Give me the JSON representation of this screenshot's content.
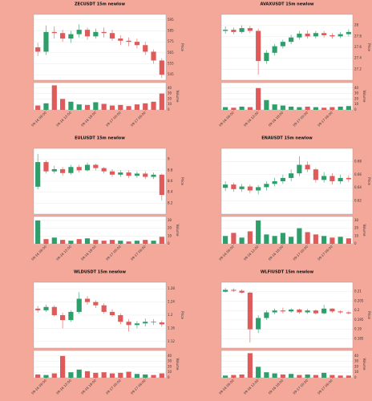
{
  "chart_data": [
    {
      "type": "candlestick",
      "title": "ZECUSDT 15m newlow",
      "ylabel": "Price",
      "volume_label": "Volume",
      "categories": [
        null,
        "09-16 06:00",
        null,
        null,
        "09-16 12:00",
        null,
        null,
        "09-16 18:00",
        null,
        null,
        "09-17 00:00",
        null,
        null,
        "09-17 06:00",
        null,
        null
      ],
      "open": [
        570,
        566,
        584,
        583,
        578,
        582,
        586,
        580,
        584,
        583,
        578,
        576,
        575,
        572,
        566,
        558
      ],
      "close": [
        566,
        584,
        583,
        578,
        582,
        586,
        580,
        584,
        583,
        578,
        576,
        575,
        572,
        566,
        558,
        545
      ],
      "high": [
        574,
        590,
        589,
        586,
        585,
        591,
        588,
        587,
        588,
        586,
        581,
        579,
        578,
        575,
        568,
        560
      ],
      "low": [
        562,
        563,
        578,
        575,
        574,
        579,
        577,
        578,
        579,
        576,
        572,
        571,
        569,
        563,
        555,
        542
      ],
      "volume": [
        8,
        12,
        45,
        20,
        15,
        10,
        9,
        14,
        11,
        8,
        9,
        7,
        10,
        12,
        15,
        30
      ],
      "ylim": [
        540,
        600
      ],
      "yticks": [
        545,
        555,
        565,
        575,
        585,
        595
      ],
      "vlim": [
        0,
        50
      ],
      "vticks": [
        0,
        10,
        20,
        30,
        40
      ],
      "up_color": "#2e9e6b",
      "down_color": "#e05a5a",
      "grid": true
    },
    {
      "type": "candlestick",
      "title": "AVAXUSDT 15m newlow",
      "ylabel": "Price",
      "volume_label": "Volume",
      "categories": [
        null,
        "09-16 06:00",
        null,
        null,
        "09-16 12:00",
        null,
        null,
        "09-16 18:00",
        null,
        null,
        "09-17 00:00",
        null,
        null,
        "09-17 06:00",
        null,
        null
      ],
      "open": [
        27.9,
        27.92,
        27.88,
        27.95,
        27.9,
        27.35,
        27.5,
        27.62,
        27.7,
        27.78,
        27.85,
        27.8,
        27.86,
        27.82,
        27.8,
        27.84
      ],
      "close": [
        27.92,
        27.88,
        27.95,
        27.9,
        27.35,
        27.5,
        27.62,
        27.7,
        27.78,
        27.85,
        27.8,
        27.86,
        27.82,
        27.8,
        27.84,
        27.88
      ],
      "high": [
        27.98,
        27.96,
        28.0,
        27.99,
        27.94,
        27.55,
        27.66,
        27.74,
        27.83,
        27.9,
        27.91,
        27.9,
        27.9,
        27.86,
        27.88,
        27.93
      ],
      "low": [
        27.85,
        27.84,
        27.85,
        27.86,
        27.1,
        27.3,
        27.45,
        27.58,
        27.66,
        27.74,
        27.76,
        27.76,
        27.78,
        27.76,
        27.77,
        27.8
      ],
      "volume": [
        5,
        4,
        6,
        5,
        40,
        18,
        10,
        8,
        6,
        5,
        6,
        5,
        4,
        5,
        6,
        7
      ],
      "ylim": [
        27.0,
        28.2
      ],
      "yticks": [
        27.2,
        27.4,
        27.6,
        27.8,
        28
      ],
      "vlim": [
        0,
        50
      ],
      "vticks": [
        0,
        10,
        20,
        30,
        40
      ],
      "up_color": "#2e9e6b",
      "down_color": "#e05a5a",
      "grid": true
    },
    {
      "type": "candlestick",
      "title": "EULUSDT 15m newlow",
      "ylabel": "Price",
      "volume_label": "Volume",
      "categories": [
        null,
        "09-16 06:00",
        null,
        null,
        "09-16 12:00",
        null,
        null,
        "09-16 18:00",
        null,
        null,
        "09-17 00:00",
        null,
        null,
        "09-17 06:00",
        null,
        null
      ],
      "open": [
        8.5,
        8.95,
        8.78,
        8.82,
        8.75,
        8.86,
        8.8,
        8.9,
        8.84,
        8.78,
        8.72,
        8.76,
        8.7,
        8.74,
        8.68,
        8.72
      ],
      "close": [
        8.95,
        8.78,
        8.82,
        8.75,
        8.86,
        8.8,
        8.9,
        8.84,
        8.78,
        8.72,
        8.76,
        8.7,
        8.74,
        8.68,
        8.72,
        8.35
      ],
      "high": [
        9.1,
        8.98,
        8.88,
        8.86,
        8.9,
        8.9,
        8.94,
        8.92,
        8.86,
        8.82,
        8.8,
        8.8,
        8.78,
        8.78,
        8.76,
        8.74
      ],
      "low": [
        8.45,
        8.74,
        8.74,
        8.7,
        8.72,
        8.76,
        8.78,
        8.8,
        8.74,
        8.68,
        8.68,
        8.66,
        8.66,
        8.64,
        8.64,
        8.25
      ],
      "volume": [
        30,
        6,
        8,
        5,
        4,
        6,
        7,
        5,
        4,
        5,
        4,
        3,
        4,
        5,
        4,
        9
      ],
      "ylim": [
        8.0,
        9.2
      ],
      "yticks": [
        8.2,
        8.4,
        8.6,
        8.8,
        9
      ],
      "vlim": [
        0,
        35
      ],
      "vticks": [
        0,
        10,
        20,
        30
      ],
      "up_color": "#2e9e6b",
      "down_color": "#e05a5a",
      "grid": true
    },
    {
      "type": "candlestick",
      "title": "ENAUSDT 15m newlow",
      "ylabel": "Price",
      "volume_label": "Volume",
      "categories": [
        null,
        "09-16 06:00",
        null,
        null,
        "09-16 12:00",
        null,
        null,
        "09-16 18:00",
        null,
        null,
        "09-17 00:00",
        null,
        null,
        "09-17 06:00",
        null,
        null
      ],
      "open": [
        0.64,
        0.645,
        0.638,
        0.642,
        0.636,
        0.641,
        0.646,
        0.65,
        0.655,
        0.662,
        0.675,
        0.668,
        0.652,
        0.658,
        0.65,
        0.655
      ],
      "close": [
        0.645,
        0.638,
        0.642,
        0.636,
        0.641,
        0.646,
        0.65,
        0.655,
        0.662,
        0.675,
        0.668,
        0.652,
        0.658,
        0.65,
        0.655,
        0.653
      ],
      "high": [
        0.65,
        0.648,
        0.646,
        0.645,
        0.644,
        0.65,
        0.655,
        0.66,
        0.668,
        0.688,
        0.68,
        0.67,
        0.664,
        0.662,
        0.66,
        0.659
      ],
      "low": [
        0.635,
        0.634,
        0.634,
        0.632,
        0.63,
        0.636,
        0.642,
        0.646,
        0.65,
        0.658,
        0.664,
        0.648,
        0.648,
        0.645,
        0.646,
        0.649
      ],
      "volume": [
        10,
        14,
        8,
        16,
        30,
        12,
        10,
        14,
        9,
        20,
        15,
        12,
        10,
        8,
        9,
        7
      ],
      "ylim": [
        0.6,
        0.7
      ],
      "yticks": [
        0.62,
        0.64,
        0.66,
        0.68
      ],
      "vlim": [
        0,
        35
      ],
      "vticks": [
        0,
        10,
        20,
        30
      ],
      "up_color": "#2e9e6b",
      "down_color": "#e05a5a",
      "grid": true
    },
    {
      "type": "candlestick",
      "title": "WLDUSDT 15m newlow",
      "ylabel": "Price",
      "volume_label": "Volume",
      "categories": [
        null,
        "09-16 06:00",
        null,
        null,
        "09-16 12:00",
        null,
        null,
        "09-16 18:00",
        null,
        null,
        "09-17 00:00",
        null,
        null,
        "09-17 06:00",
        null,
        null
      ],
      "open": [
        1.22,
        1.215,
        1.225,
        1.2,
        1.185,
        1.21,
        1.25,
        1.24,
        1.23,
        1.21,
        1.2,
        1.18,
        1.17,
        1.175,
        1.18,
        1.178
      ],
      "close": [
        1.215,
        1.225,
        1.2,
        1.185,
        1.21,
        1.25,
        1.24,
        1.23,
        1.21,
        1.2,
        1.18,
        1.17,
        1.175,
        1.18,
        1.178,
        1.172
      ],
      "high": [
        1.228,
        1.232,
        1.23,
        1.208,
        1.215,
        1.27,
        1.258,
        1.245,
        1.236,
        1.218,
        1.205,
        1.188,
        1.182,
        1.19,
        1.188,
        1.184
      ],
      "low": [
        1.208,
        1.21,
        1.196,
        1.16,
        1.18,
        1.205,
        1.232,
        1.222,
        1.204,
        1.195,
        1.172,
        1.15,
        1.16,
        1.166,
        1.17,
        1.165
      ],
      "volume": [
        6,
        5,
        8,
        40,
        10,
        15,
        12,
        9,
        10,
        8,
        9,
        11,
        7,
        6,
        5,
        8
      ],
      "ylim": [
        1.1,
        1.3
      ],
      "yticks": [
        1.12,
        1.16,
        1.2,
        1.24,
        1.28
      ],
      "vlim": [
        0,
        50
      ],
      "vticks": [
        0,
        10,
        20,
        30,
        40
      ],
      "up_color": "#2e9e6b",
      "down_color": "#e05a5a",
      "grid": true
    },
    {
      "type": "candlestick",
      "title": "WLFIUSDT 15m newlow",
      "ylabel": "Price",
      "volume_label": "Volume",
      "categories": [
        null,
        "09-16 06:00",
        null,
        null,
        "09-16 12:00",
        null,
        null,
        "09-16 18:00",
        null,
        null,
        "09-17 00:00",
        null,
        null,
        "09-17 06:00",
        null,
        null
      ],
      "open": [
        0.21,
        0.211,
        0.2105,
        0.2095,
        0.19,
        0.196,
        0.199,
        0.2,
        0.1995,
        0.2005,
        0.199,
        0.2,
        0.1985,
        0.201,
        0.1995,
        0.199
      ],
      "close": [
        0.211,
        0.2105,
        0.2095,
        0.19,
        0.196,
        0.199,
        0.2,
        0.1995,
        0.2005,
        0.199,
        0.2,
        0.1985,
        0.201,
        0.1995,
        0.199,
        0.1985
      ],
      "high": [
        0.212,
        0.2118,
        0.2112,
        0.21,
        0.1975,
        0.2,
        0.201,
        0.2015,
        0.2012,
        0.201,
        0.2008,
        0.2006,
        0.203,
        0.2012,
        0.2,
        0.1996
      ],
      "low": [
        0.2095,
        0.2098,
        0.209,
        0.183,
        0.188,
        0.195,
        0.198,
        0.1985,
        0.1988,
        0.1982,
        0.1982,
        0.1978,
        0.198,
        0.1988,
        0.1982,
        0.1978
      ],
      "volume": [
        4,
        5,
        6,
        45,
        20,
        10,
        8,
        6,
        7,
        5,
        6,
        5,
        9,
        5,
        4,
        4
      ],
      "ylim": [
        0.18,
        0.215
      ],
      "yticks": [
        0.185,
        0.19,
        0.195,
        0.2,
        0.205,
        0.21
      ],
      "vlim": [
        0,
        50
      ],
      "vticks": [
        0,
        10,
        20,
        30,
        40
      ],
      "up_color": "#2e9e6b",
      "down_color": "#e05a5a",
      "grid": true
    }
  ]
}
